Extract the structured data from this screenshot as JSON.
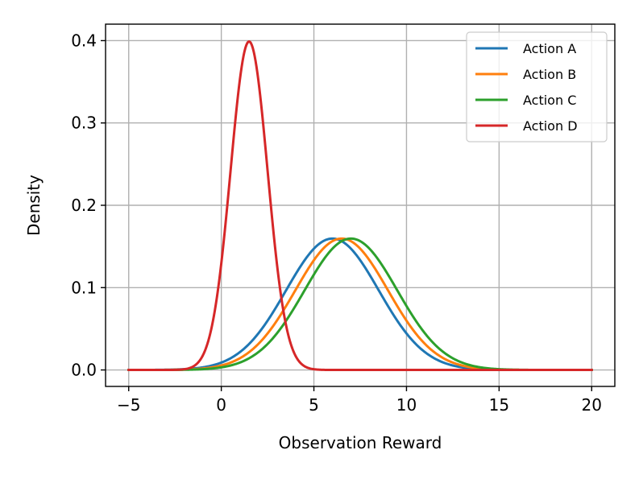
{
  "chart_data": {
    "type": "line",
    "title": "",
    "xlabel": "Observation Reward",
    "ylabel": "Density",
    "xlim": [
      -6.25,
      21.25
    ],
    "ylim": [
      -0.02,
      0.42
    ],
    "xticks": [
      -5,
      0,
      5,
      10,
      15,
      20
    ],
    "xtick_labels": [
      "−5",
      "0",
      "5",
      "10",
      "15",
      "20"
    ],
    "yticks": [
      0.0,
      0.1,
      0.2,
      0.3,
      0.4
    ],
    "ytick_labels": [
      "0.0",
      "0.1",
      "0.2",
      "0.3",
      "0.4"
    ],
    "grid": true,
    "legend_position": "top-right",
    "x_range": [
      -5,
      20
    ],
    "series": [
      {
        "name": "Action A",
        "distribution": "normal",
        "mean": 6.0,
        "std": 2.5,
        "color": "#1f77b4"
      },
      {
        "name": "Action B",
        "distribution": "normal",
        "mean": 6.5,
        "std": 2.5,
        "color": "#ff7f0e"
      },
      {
        "name": "Action C",
        "distribution": "normal",
        "mean": 7.0,
        "std": 2.5,
        "color": "#2ca02c"
      },
      {
        "name": "Action D",
        "distribution": "normal",
        "mean": 1.5,
        "std": 1.0,
        "color": "#d62728"
      }
    ]
  }
}
